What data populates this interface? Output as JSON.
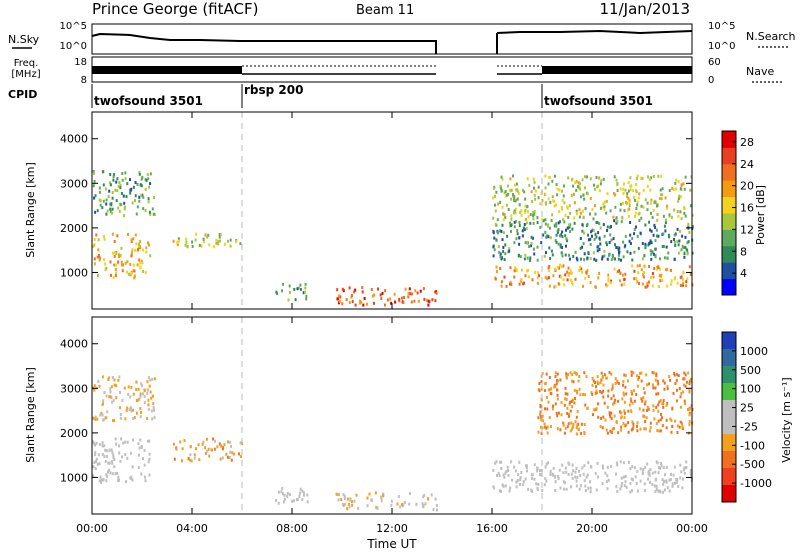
{
  "header": {
    "station": "Prince George (fitACF)",
    "beam": "Beam 11",
    "date": "11/Jan/2013"
  },
  "noise_panel": {
    "left_label": "N.Sky",
    "right_label": "N.Search",
    "left_ticks": [
      "10^5",
      "10^0"
    ],
    "right_ticks": [
      "10^5",
      "10^0"
    ]
  },
  "freq_panel": {
    "left_label_1": "Freq.",
    "left_label_2": "[MHz]",
    "right_label": "Nave",
    "left_ticks": [
      "18",
      "8"
    ],
    "right_ticks": [
      "60",
      "0"
    ]
  },
  "cpid": {
    "label": "CPID",
    "segments": [
      {
        "name": "twofsound 3501",
        "start_hour": 0
      },
      {
        "name": "rbsp 200",
        "start_hour": 6
      },
      {
        "name": "twofsound 3501",
        "start_hour": 18
      }
    ]
  },
  "colors": {
    "power_scale": [
      "#0000ff",
      "#1f4fa0",
      "#2e8b57",
      "#5fa85f",
      "#a8c83c",
      "#f2d21e",
      "#f39c12",
      "#f07020",
      "#e84020",
      "#e00000"
    ],
    "velocity_scale": [
      "#1f3fb8",
      "#2e6aa0",
      "#2f8f6f",
      "#4bbf3f",
      "#bfbfbf",
      "#bfbfbf",
      "#f3a020",
      "#f07020",
      "#ee4020",
      "#e00000"
    ]
  },
  "chart_data": [
    {
      "type": "heatmap",
      "title": "Power",
      "xlabel": "Time UT",
      "ylabel": "Slant Range [km]",
      "xlim": [
        0,
        24
      ],
      "ylim": [
        180,
        4600
      ],
      "yticks": [
        1000,
        2000,
        3000,
        4000
      ],
      "xticks": [
        "00:00",
        "04:00",
        "08:00",
        "12:00",
        "16:00",
        "20:00",
        "00:00"
      ],
      "colorbar": {
        "label": "Power [dB]",
        "ticks": [
          "4",
          "8",
          "12",
          "16",
          "20",
          "24",
          "28"
        ],
        "range": [
          0,
          30
        ]
      },
      "echo_regions": [
        {
          "t0": 0.0,
          "t1": 2.3,
          "r0": 900,
          "r1": 1900,
          "value": 18
        },
        {
          "t0": 0.0,
          "t1": 2.5,
          "r0": 2300,
          "r1": 3300,
          "value": 10
        },
        {
          "t0": 3.2,
          "t1": 6.0,
          "r0": 1600,
          "r1": 1900,
          "value": 14
        },
        {
          "t0": 7.3,
          "t1": 8.6,
          "r0": 400,
          "r1": 800,
          "value": 10
        },
        {
          "t0": 9.7,
          "t1": 13.8,
          "r0": 300,
          "r1": 700,
          "value": 24
        },
        {
          "t0": 16.0,
          "t1": 24.0,
          "r0": 700,
          "r1": 1200,
          "value": 20
        },
        {
          "t0": 16.0,
          "t1": 24.0,
          "r0": 1300,
          "r1": 2200,
          "value": 8
        },
        {
          "t0": 16.0,
          "t1": 24.0,
          "r0": 2200,
          "r1": 3200,
          "value": 14
        }
      ]
    },
    {
      "type": "heatmap",
      "title": "Velocity",
      "xlabel": "Time UT",
      "ylabel": "Slant Range [km]",
      "xlim": [
        0,
        24
      ],
      "ylim": [
        180,
        4600
      ],
      "yticks": [
        1000,
        2000,
        3000,
        4000
      ],
      "xticks": [
        "00:00",
        "04:00",
        "08:00",
        "12:00",
        "16:00",
        "20:00",
        "00:00"
      ],
      "colorbar": {
        "label": "Velocity [m s⁻¹]",
        "ticks": [
          "1000",
          "500",
          "100",
          "25",
          "-25",
          "-100",
          "-500",
          "-1000"
        ],
        "range": [
          -1000,
          1000
        ]
      },
      "echo_regions": [
        {
          "t0": 0.0,
          "t1": 2.3,
          "r0": 900,
          "r1": 1900,
          "value": 0
        },
        {
          "t0": 0.0,
          "t1": 2.5,
          "r0": 2300,
          "r1": 3300,
          "value": -200
        },
        {
          "t0": 3.2,
          "t1": 6.0,
          "r0": 1400,
          "r1": 1900,
          "value": -300
        },
        {
          "t0": 7.3,
          "t1": 8.6,
          "r0": 400,
          "r1": 800,
          "value": 0
        },
        {
          "t0": 9.7,
          "t1": 13.8,
          "r0": 300,
          "r1": 700,
          "value": -150
        },
        {
          "t0": 16.0,
          "t1": 24.0,
          "r0": 700,
          "r1": 1400,
          "value": 0
        },
        {
          "t0": 17.8,
          "t1": 24.0,
          "r0": 2000,
          "r1": 3400,
          "value": -400
        }
      ]
    }
  ]
}
